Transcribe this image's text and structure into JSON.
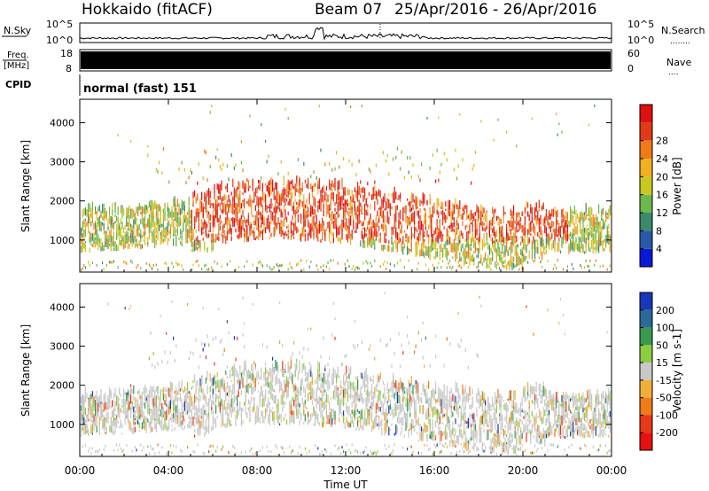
{
  "header": {
    "station": "Hokkaido (fitACF)",
    "beam": "Beam 07",
    "dates": "25/Apr/2016 - 26/Apr/2016"
  },
  "strips": {
    "nsky": {
      "label": "N.Sky",
      "ticks": [
        "10^5",
        "10^0"
      ],
      "right_ticks": [
        "10^5",
        "10^0"
      ],
      "right_label": "N.Search",
      "right_legend": "........"
    },
    "freq": {
      "label": "Freq.",
      "unit": "[MHz]",
      "ticks": [
        "18",
        "8"
      ],
      "right_ticks": [
        "60",
        "0"
      ],
      "right_label": "Nave",
      "right_legend": "...."
    },
    "cpid": {
      "label": "CPID",
      "text": "normal (fast) 151"
    }
  },
  "chart_data": [
    {
      "type": "heatmap",
      "panel": "power",
      "ylabel": "Slant Range [km]",
      "yticks": [
        1000,
        2000,
        3000,
        4000
      ],
      "ylim": [
        180,
        4600
      ],
      "xlim_hours": [
        0,
        24
      ],
      "colorbar": {
        "label": "Power [dB]",
        "ticks": [
          4,
          8,
          12,
          16,
          20,
          24,
          28
        ],
        "range": [
          0,
          32
        ],
        "colors": [
          "#0a18d8",
          "#2858a8",
          "#3c8a6a",
          "#6cb84a",
          "#c8c820",
          "#f0b020",
          "#f07a18",
          "#e03a18",
          "#e01010"
        ]
      }
    },
    {
      "type": "heatmap",
      "panel": "velocity",
      "ylabel": "Slant Range [km]",
      "yticks": [
        1000,
        2000,
        3000,
        4000
      ],
      "ylim": [
        180,
        4600
      ],
      "xlim_hours": [
        0,
        24
      ],
      "colorbar": {
        "label": "Velocity [m s-1]",
        "ticks": [
          200,
          100,
          50,
          15,
          -15,
          -50,
          -100,
          -200
        ],
        "colors": [
          "#1838b8",
          "#2a6a9a",
          "#3a9a50",
          "#8ccc40",
          "#c8c8c8",
          "#f0b038",
          "#f07a18",
          "#e83818",
          "#e81010"
        ]
      }
    }
  ],
  "xaxis": {
    "ticks": [
      "00:00",
      "04:00",
      "08:00",
      "12:00",
      "16:00",
      "20:00",
      "00:00"
    ],
    "label": "Time UT"
  }
}
